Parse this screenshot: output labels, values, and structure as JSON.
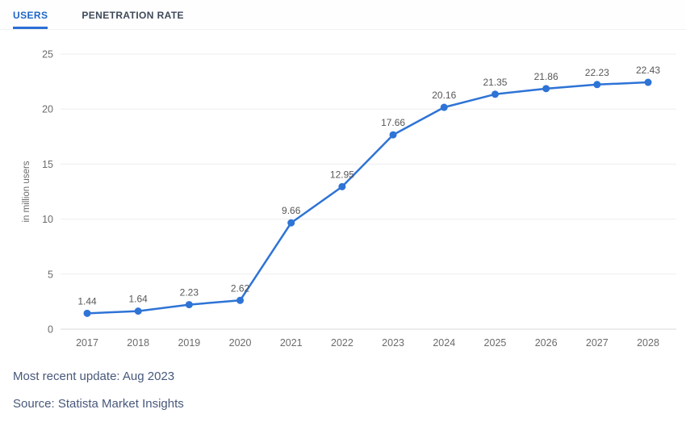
{
  "tabs": [
    {
      "label": "USERS",
      "active": true
    },
    {
      "label": "PENETRATION RATE",
      "active": false
    }
  ],
  "chart_data": {
    "type": "line",
    "categories": [
      "2017",
      "2018",
      "2019",
      "2020",
      "2021",
      "2022",
      "2023",
      "2024",
      "2025",
      "2026",
      "2027",
      "2028"
    ],
    "values": [
      1.44,
      1.64,
      2.23,
      2.62,
      9.66,
      12.95,
      17.66,
      20.16,
      21.35,
      21.86,
      22.23,
      22.43
    ],
    "value_labels": [
      "1.44",
      "1.64",
      "2.23",
      "2.62",
      "9.66",
      "12.95",
      "17.66",
      "20.16",
      "21.35",
      "21.86",
      "22.23",
      "22.43"
    ],
    "title": "",
    "xlabel": "",
    "ylabel": "in million users",
    "ylim": [
      0,
      25
    ],
    "yticks": [
      0,
      5,
      10,
      15,
      20,
      25
    ],
    "grid": true,
    "legend": "none",
    "line_color": "#2e73d6",
    "marker_color": "#2e73d6",
    "grid_color": "#ededed",
    "axis_line_color": "#d9d9d9",
    "tick_text_color": "#6b6b6b",
    "data_label_color": "#575757"
  },
  "footer": {
    "update_text": "Most recent update: Aug 2023",
    "source_text": "Source: Statista Market Insights"
  },
  "colors": {
    "accent_blue": "#1f66c7",
    "tab_underline": "#2b6fd4",
    "inactive_tab_text": "#3e4959",
    "footer_text": "#47587a",
    "background": "#ffffff"
  }
}
